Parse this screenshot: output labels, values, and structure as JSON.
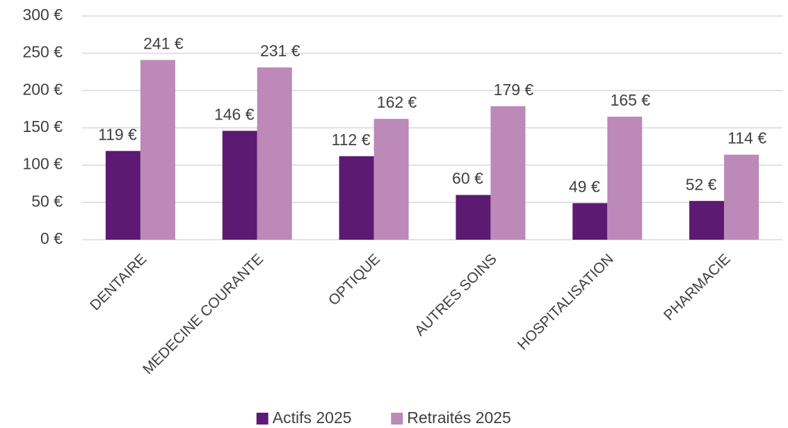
{
  "chart_data": {
    "type": "bar",
    "categories": [
      "DENTAIRE",
      "MEDECINE COURANTE",
      "OPTIQUE",
      "AUTRES SOINS",
      "HOSPITALISATION",
      "PHARMACIE"
    ],
    "series": [
      {
        "name": "Actifs 2025",
        "color": "#5c1a73",
        "values": [
          119,
          146,
          112,
          60,
          49,
          52
        ],
        "value_labels": [
          "119 €",
          "146 €",
          "112 €",
          "60 €",
          "49 €",
          "52 €"
        ]
      },
      {
        "name": "Retraités 2025",
        "color": "#bc89b8",
        "values": [
          241,
          231,
          162,
          179,
          165,
          114
        ],
        "value_labels": [
          "241 €",
          "231 €",
          "162 €",
          "179 €",
          "165 €",
          "114 €"
        ]
      }
    ],
    "ylim": [
      0,
      300
    ],
    "yticks": [
      {
        "value": 0,
        "label": "0 €"
      },
      {
        "value": 50,
        "label": "50 €"
      },
      {
        "value": 100,
        "label": "100 €"
      },
      {
        "value": 150,
        "label": "150 €"
      },
      {
        "value": 200,
        "label": "200 €"
      },
      {
        "value": 250,
        "label": "250 €"
      },
      {
        "value": 300,
        "label": "300 €"
      }
    ],
    "grid": true,
    "legend": "bottom"
  }
}
